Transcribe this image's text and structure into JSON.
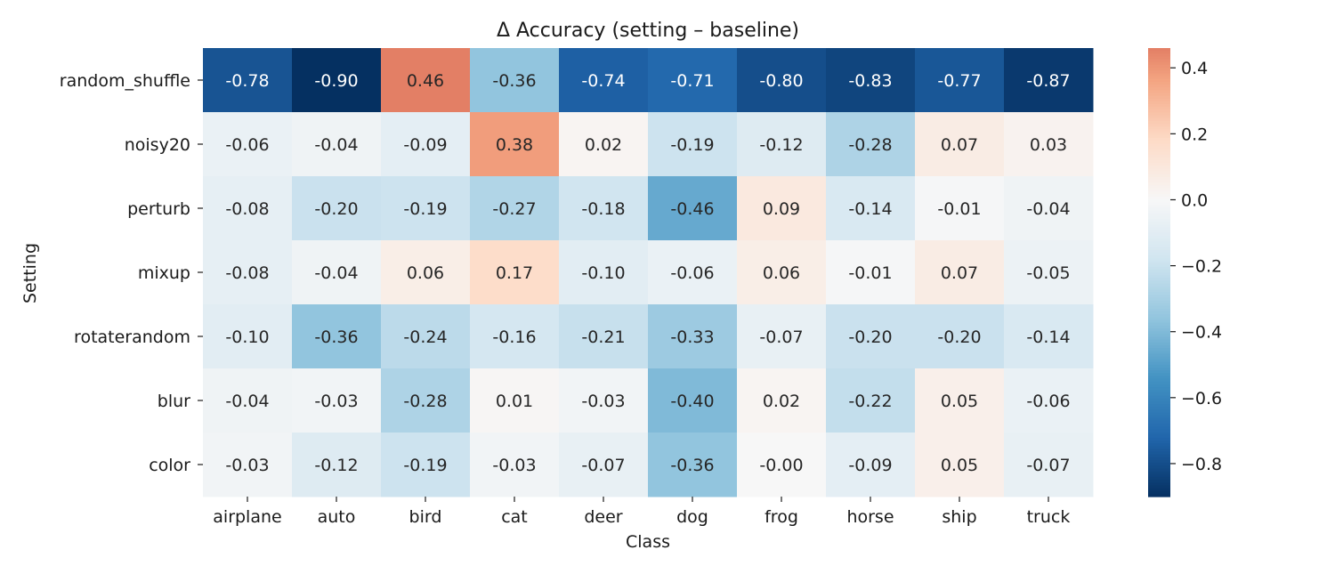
{
  "chart_data": {
    "type": "heatmap",
    "title": "Δ Accuracy (setting – baseline)",
    "xlabel": "Class",
    "ylabel": "Setting",
    "x_categories": [
      "airplane",
      "auto",
      "bird",
      "cat",
      "deer",
      "dog",
      "frog",
      "horse",
      "ship",
      "truck"
    ],
    "y_categories": [
      "random_shuffle",
      "noisy20",
      "perturb",
      "mixup",
      "rotaterandom",
      "blur",
      "color"
    ],
    "values": [
      [
        -0.78,
        -0.9,
        0.46,
        -0.36,
        -0.74,
        -0.71,
        -0.8,
        -0.83,
        -0.77,
        -0.87
      ],
      [
        -0.06,
        -0.04,
        -0.09,
        0.38,
        0.02,
        -0.19,
        -0.12,
        -0.28,
        0.07,
        0.03
      ],
      [
        -0.08,
        -0.2,
        -0.19,
        -0.27,
        -0.18,
        -0.46,
        0.09,
        -0.14,
        -0.01,
        -0.04
      ],
      [
        -0.08,
        -0.04,
        0.06,
        0.17,
        -0.1,
        -0.06,
        0.06,
        -0.01,
        0.07,
        -0.05
      ],
      [
        -0.1,
        -0.36,
        -0.24,
        -0.16,
        -0.21,
        -0.33,
        -0.07,
        -0.2,
        -0.2,
        -0.14
      ],
      [
        -0.04,
        -0.03,
        -0.28,
        0.01,
        -0.03,
        -0.4,
        0.02,
        -0.22,
        0.05,
        -0.06
      ],
      [
        -0.03,
        -0.12,
        -0.19,
        -0.03,
        -0.07,
        -0.36,
        -0.0,
        -0.09,
        0.05,
        -0.07
      ]
    ],
    "cell_labels": [
      [
        "-0.78",
        "-0.90",
        "0.46",
        "-0.36",
        "-0.74",
        "-0.71",
        "-0.80",
        "-0.83",
        "-0.77",
        "-0.87"
      ],
      [
        "-0.06",
        "-0.04",
        "-0.09",
        "0.38",
        "0.02",
        "-0.19",
        "-0.12",
        "-0.28",
        "0.07",
        "0.03"
      ],
      [
        "-0.08",
        "-0.20",
        "-0.19",
        "-0.27",
        "-0.18",
        "-0.46",
        "0.09",
        "-0.14",
        "-0.01",
        "-0.04"
      ],
      [
        "-0.08",
        "-0.04",
        "0.06",
        "0.17",
        "-0.10",
        "-0.06",
        "0.06",
        "-0.01",
        "0.07",
        "-0.05"
      ],
      [
        "-0.10",
        "-0.36",
        "-0.24",
        "-0.16",
        "-0.21",
        "-0.33",
        "-0.07",
        "-0.20",
        "-0.20",
        "-0.14"
      ],
      [
        "-0.04",
        "-0.03",
        "-0.28",
        "0.01",
        "-0.03",
        "-0.40",
        "0.02",
        "-0.22",
        "0.05",
        "-0.06"
      ],
      [
        "-0.03",
        "-0.12",
        "-0.19",
        "-0.03",
        "-0.07",
        "-0.36",
        "-0.00",
        "-0.09",
        "0.05",
        "-0.07"
      ]
    ],
    "colormap": "RdBu_r",
    "color_center": 0,
    "color_range": [
      -0.9,
      0.46
    ],
    "colorbar": {
      "ticks": [
        0.4,
        0.2,
        0.0,
        -0.2,
        -0.4,
        -0.6,
        -0.8
      ],
      "tick_labels": [
        "0.4",
        "0.2",
        "0.0",
        "−0.2",
        "−0.4",
        "−0.6",
        "−0.8"
      ]
    }
  }
}
